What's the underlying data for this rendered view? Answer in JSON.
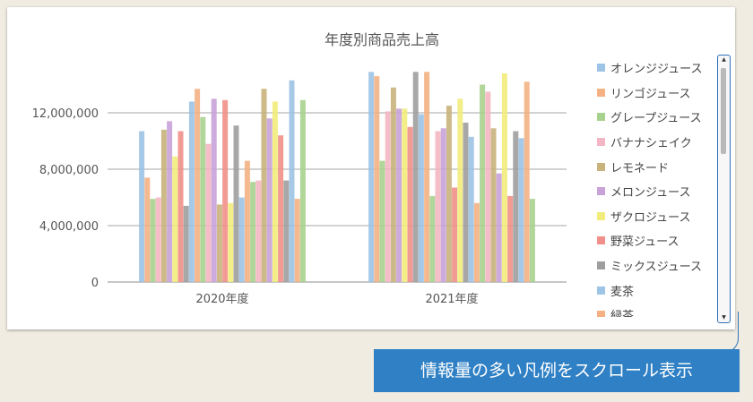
{
  "chart_data": {
    "type": "bar",
    "title": "年度別商品売上高",
    "categories": [
      "2020年度",
      "2021年度"
    ],
    "y_ticks": [
      "0",
      "4,000,000",
      "8,000,000",
      "12,000,000"
    ],
    "ylim": [
      0,
      15500000
    ],
    "grid": true,
    "legend": "right",
    "series": [
      {
        "name": "オレンジジュース",
        "color": "#9dc3e6",
        "values": [
          10700000,
          14900000
        ]
      },
      {
        "name": "リンゴジュース",
        "color": "#f4b183",
        "values": [
          7400000,
          14600000
        ]
      },
      {
        "name": "グレープジュース",
        "color": "#a9d18e",
        "values": [
          5900000,
          8600000
        ]
      },
      {
        "name": "バナナシェイク",
        "color": "#f4b6c2",
        "values": [
          6000000,
          12100000
        ]
      },
      {
        "name": "レモネード",
        "color": "#c9b27c",
        "values": [
          10800000,
          13800000
        ]
      },
      {
        "name": "メロンジュース",
        "color": "#c8a2d8",
        "values": [
          11400000,
          12300000
        ]
      },
      {
        "name": "ザクロジュース",
        "color": "#f2ec7b",
        "values": [
          8900000,
          12300000
        ]
      },
      {
        "name": "野菜ジュース",
        "color": "#f1908a",
        "values": [
          10700000,
          11000000
        ]
      },
      {
        "name": "ミックスジュース",
        "color": "#9e9e9e",
        "values": [
          5400000,
          14900000
        ]
      },
      {
        "name": "麦茶",
        "color": "#9dc3e6",
        "values": [
          12800000,
          11900000
        ]
      },
      {
        "name": "緑茶",
        "color": "#f4b183",
        "values": [
          13700000,
          14900000
        ]
      },
      {
        "name": "",
        "color": "#a9d18e",
        "values": [
          11700000,
          6100000
        ]
      },
      {
        "name": "",
        "color": "#f4b6c2",
        "values": [
          9800000,
          10700000
        ]
      },
      {
        "name": "",
        "color": "#c8a2d8",
        "values": [
          13000000,
          10900000
        ]
      },
      {
        "name": "",
        "color": "#c9b27c",
        "values": [
          5500000,
          12500000
        ]
      },
      {
        "name": "",
        "color": "#f1908a",
        "values": [
          12900000,
          6700000
        ]
      },
      {
        "name": "",
        "color": "#f2ec7b",
        "values": [
          5600000,
          13000000
        ]
      },
      {
        "name": "",
        "color": "#9e9e9e",
        "values": [
          11100000,
          11300000
        ]
      },
      {
        "name": "",
        "color": "#9dc3e6",
        "values": [
          6000000,
          10300000
        ]
      },
      {
        "name": "",
        "color": "#f4b183",
        "values": [
          8600000,
          5600000
        ]
      },
      {
        "name": "",
        "color": "#a9d18e",
        "values": [
          7100000,
          14000000
        ]
      },
      {
        "name": "",
        "color": "#f4b6c2",
        "values": [
          7200000,
          13500000
        ]
      },
      {
        "name": "",
        "color": "#c9b27c",
        "values": [
          13700000,
          10900000
        ]
      },
      {
        "name": "",
        "color": "#c8a2d8",
        "values": [
          11600000,
          7700000
        ]
      },
      {
        "name": "",
        "color": "#f2ec7b",
        "values": [
          12800000,
          14800000
        ]
      },
      {
        "name": "",
        "color": "#f1908a",
        "values": [
          10400000,
          6100000
        ]
      },
      {
        "name": "",
        "color": "#9e9e9e",
        "values": [
          7200000,
          10700000
        ]
      },
      {
        "name": "",
        "color": "#9dc3e6",
        "values": [
          14300000,
          10200000
        ]
      },
      {
        "name": "",
        "color": "#f4b183",
        "values": [
          5900000,
          14200000
        ]
      },
      {
        "name": "",
        "color": "#a9d18e",
        "values": [
          12900000,
          5900000
        ]
      }
    ]
  },
  "legend_scrollbar": {
    "up_icon": "▲",
    "down_icon": "▼"
  },
  "callout": {
    "text": "情報量の多い凡例をスクロール表示"
  }
}
